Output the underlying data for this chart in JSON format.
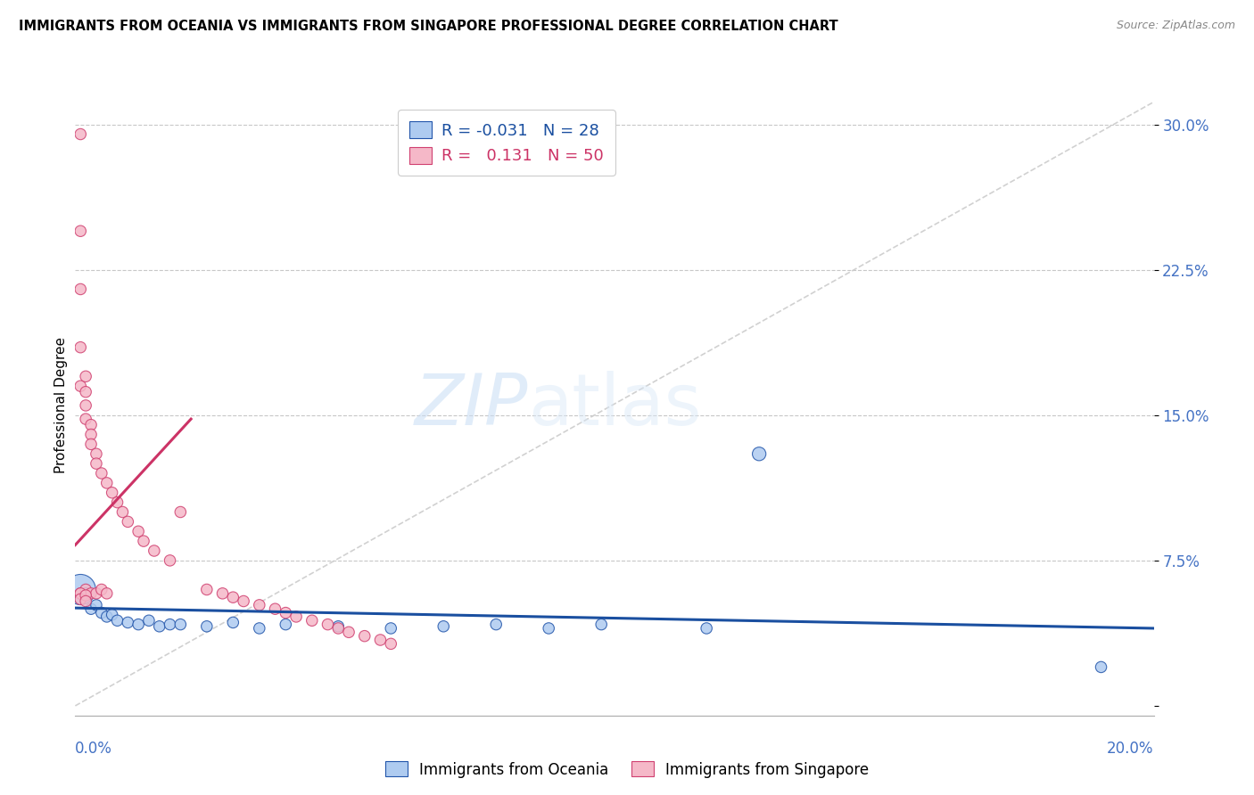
{
  "title": "IMMIGRANTS FROM OCEANIA VS IMMIGRANTS FROM SINGAPORE PROFESSIONAL DEGREE CORRELATION CHART",
  "source": "Source: ZipAtlas.com",
  "ylabel": "Professional Degree",
  "xlim": [
    0.0,
    0.205
  ],
  "ylim": [
    -0.005,
    0.315
  ],
  "watermark_zip": "ZIP",
  "watermark_atlas": "atlas",
  "legend_r1": "R = -0.031",
  "legend_n1": "N = 28",
  "legend_r2": "R =   0.131",
  "legend_n2": "N = 50",
  "color_oceania_fill": "#aecbf0",
  "color_oceania_edge": "#2255aa",
  "color_singapore_fill": "#f5b8c8",
  "color_singapore_edge": "#d04070",
  "color_diag_line": "#cccccc",
  "color_trend_oceania": "#1a4fa0",
  "color_trend_singapore": "#cc3366",
  "color_ytick": "#4472c4",
  "color_xtick": "#4472c4",
  "yticks": [
    0.0,
    0.075,
    0.15,
    0.225,
    0.3
  ],
  "ytick_labels": [
    "",
    "7.5%",
    "15.0%",
    "22.5%",
    "30.0%"
  ],
  "oceania_x": [
    0.001,
    0.001,
    0.002,
    0.003,
    0.004,
    0.005,
    0.006,
    0.007,
    0.008,
    0.01,
    0.012,
    0.014,
    0.016,
    0.018,
    0.02,
    0.025,
    0.03,
    0.035,
    0.04,
    0.05,
    0.06,
    0.07,
    0.08,
    0.09,
    0.1,
    0.12,
    0.13,
    0.195
  ],
  "oceania_y": [
    0.06,
    0.055,
    0.058,
    0.05,
    0.052,
    0.048,
    0.046,
    0.047,
    0.044,
    0.043,
    0.042,
    0.044,
    0.041,
    0.042,
    0.042,
    0.041,
    0.043,
    0.04,
    0.042,
    0.041,
    0.04,
    0.041,
    0.042,
    0.04,
    0.042,
    0.04,
    0.13,
    0.02
  ],
  "oceania_sizes": [
    600,
    80,
    80,
    80,
    80,
    80,
    80,
    80,
    80,
    80,
    80,
    80,
    80,
    80,
    80,
    80,
    80,
    80,
    80,
    80,
    80,
    80,
    80,
    80,
    80,
    80,
    120,
    80
  ],
  "singapore_x": [
    0.001,
    0.001,
    0.001,
    0.001,
    0.001,
    0.001,
    0.002,
    0.002,
    0.002,
    0.002,
    0.002,
    0.003,
    0.003,
    0.003,
    0.003,
    0.004,
    0.004,
    0.004,
    0.005,
    0.005,
    0.006,
    0.006,
    0.007,
    0.008,
    0.009,
    0.01,
    0.012,
    0.013,
    0.015,
    0.018,
    0.02,
    0.025,
    0.028,
    0.03,
    0.032,
    0.035,
    0.038,
    0.04,
    0.042,
    0.045,
    0.048,
    0.05,
    0.052,
    0.055,
    0.058,
    0.06,
    0.001,
    0.001,
    0.002,
    0.002
  ],
  "singapore_y": [
    0.295,
    0.245,
    0.215,
    0.185,
    0.165,
    0.058,
    0.17,
    0.162,
    0.155,
    0.148,
    0.06,
    0.145,
    0.14,
    0.135,
    0.058,
    0.13,
    0.125,
    0.058,
    0.12,
    0.06,
    0.115,
    0.058,
    0.11,
    0.105,
    0.1,
    0.095,
    0.09,
    0.085,
    0.08,
    0.075,
    0.1,
    0.06,
    0.058,
    0.056,
    0.054,
    0.052,
    0.05,
    0.048,
    0.046,
    0.044,
    0.042,
    0.04,
    0.038,
    0.036,
    0.034,
    0.032,
    0.058,
    0.055,
    0.057,
    0.054
  ],
  "singapore_sizes": [
    80,
    80,
    80,
    80,
    80,
    80,
    80,
    80,
    80,
    80,
    80,
    80,
    80,
    80,
    80,
    80,
    80,
    80,
    80,
    80,
    80,
    80,
    80,
    80,
    80,
    80,
    80,
    80,
    80,
    80,
    80,
    80,
    80,
    80,
    80,
    80,
    80,
    80,
    80,
    80,
    80,
    80,
    80,
    80,
    80,
    80,
    80,
    80,
    80,
    80
  ]
}
